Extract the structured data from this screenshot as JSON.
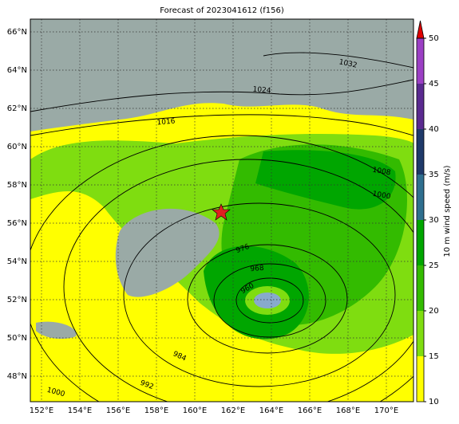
{
  "title": "Forecast of 2023041612 (f156)",
  "map": {
    "lat_labels": [
      "66°N",
      "64°N",
      "62°N",
      "60°N",
      "58°N",
      "56°N",
      "54°N",
      "52°N",
      "50°N",
      "48°N"
    ],
    "lon_labels": [
      "152°E",
      "154°E",
      "156°E",
      "158°E",
      "160°E",
      "162°E",
      "164°E",
      "166°E",
      "168°E",
      "170°E"
    ],
    "contour_labels": [
      1032,
      1024,
      1016,
      1008,
      1000,
      976,
      968,
      960,
      984,
      992,
      1000
    ]
  },
  "colorbar": {
    "label": "10 m wind speed (m/s)",
    "ticks": [
      10,
      15,
      20,
      25,
      30,
      35,
      40,
      45,
      50
    ],
    "colors": [
      "#ffff00",
      "#7fdd10",
      "#33bb00",
      "#00a600",
      "#2f6f8f",
      "#1f3a6a",
      "#5a2a90",
      "#9b3fc4"
    ],
    "extend_color": "#e00000"
  }
}
